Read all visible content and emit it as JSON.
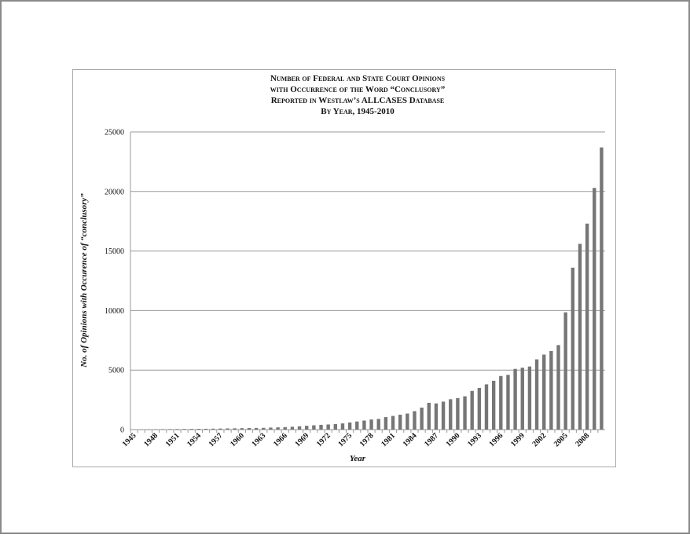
{
  "chart_data": {
    "type": "bar",
    "title": [
      "Number of Federal and State Court Opinions",
      "with Occurrence of the Word “Conclusory”",
      "Reported in Westlaw’s ALLCASES Database",
      "By Year, 1945-2010"
    ],
    "x_label": "Year",
    "y_label": "No. of Opinions with Occurence of “conclusory”",
    "categories": [
      "1945",
      null,
      null,
      "1948",
      null,
      null,
      "1951",
      null,
      null,
      "1954",
      null,
      null,
      "1957",
      null,
      null,
      "1960",
      null,
      null,
      "1963",
      null,
      null,
      "1966",
      null,
      null,
      "1969",
      null,
      null,
      "1972",
      null,
      null,
      "1975",
      null,
      null,
      "1978",
      null,
      null,
      "1981",
      null,
      null,
      "1984",
      null,
      null,
      "1987",
      null,
      null,
      "1990",
      null,
      null,
      "1993",
      null,
      null,
      "1996",
      null,
      null,
      "1999",
      null,
      null,
      "2002",
      null,
      null,
      "2005",
      null,
      null,
      "2008",
      null,
      null
    ],
    "values": [
      20,
      25,
      30,
      35,
      40,
      45,
      50,
      55,
      60,
      65,
      70,
      80,
      90,
      100,
      110,
      120,
      130,
      140,
      150,
      170,
      190,
      210,
      240,
      280,
      320,
      360,
      400,
      430,
      470,
      520,
      600,
      680,
      760,
      850,
      900,
      1050,
      1150,
      1250,
      1350,
      1550,
      1850,
      2250,
      2200,
      2350,
      2550,
      2650,
      2800,
      3250,
      3500,
      3800,
      4100,
      4500,
      4600,
      5100,
      5200,
      5300,
      5900,
      6300,
      6600,
      7100,
      9850,
      13600,
      15600,
      17300,
      20300,
      23700
    ],
    "color": "#767676",
    "ylim": [
      0,
      25000
    ],
    "yticks": [
      0,
      5000,
      10000,
      15000,
      20000,
      25000
    ],
    "grid": true
  }
}
